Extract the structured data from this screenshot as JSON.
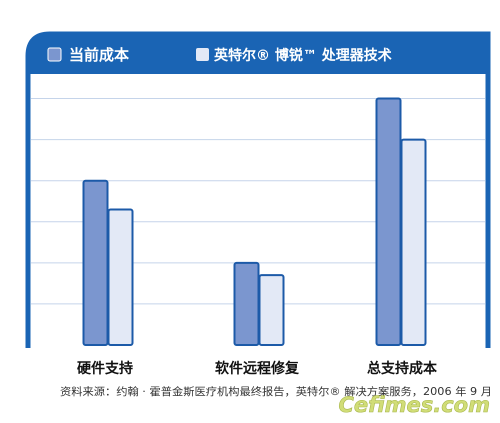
{
  "chart_data": {
    "type": "bar",
    "categories": [
      "硬件支持",
      "软件远程修复",
      "总支持成本"
    ],
    "series": [
      {
        "name": "当前成本",
        "values": [
          4.0,
          2.0,
          6.0
        ]
      },
      {
        "name": "英特尔® 博锐™ 处理器技术",
        "values": [
          3.3,
          1.7,
          5.0
        ]
      }
    ],
    "ylim": [
      0,
      6.5
    ],
    "grid": true,
    "legend_placement": "top",
    "colors": {
      "frame": "#1a64b4",
      "series_1_fill": "#7b96cf",
      "series_1_stroke": "#1c5aa8",
      "series_2_fill": "#e3e9f6",
      "series_2_stroke": "#1c5aa8",
      "grid": "#c5d4ea",
      "legend_text": "#ffffff",
      "category_text": "#111111",
      "source_text": "#333333"
    }
  },
  "footnote": "资料来源：约翰 · 霍普金斯医疗机构最终报告，英特尔® 解决方案服务，2006 年 9 月",
  "watermark": "Cefimes.com"
}
